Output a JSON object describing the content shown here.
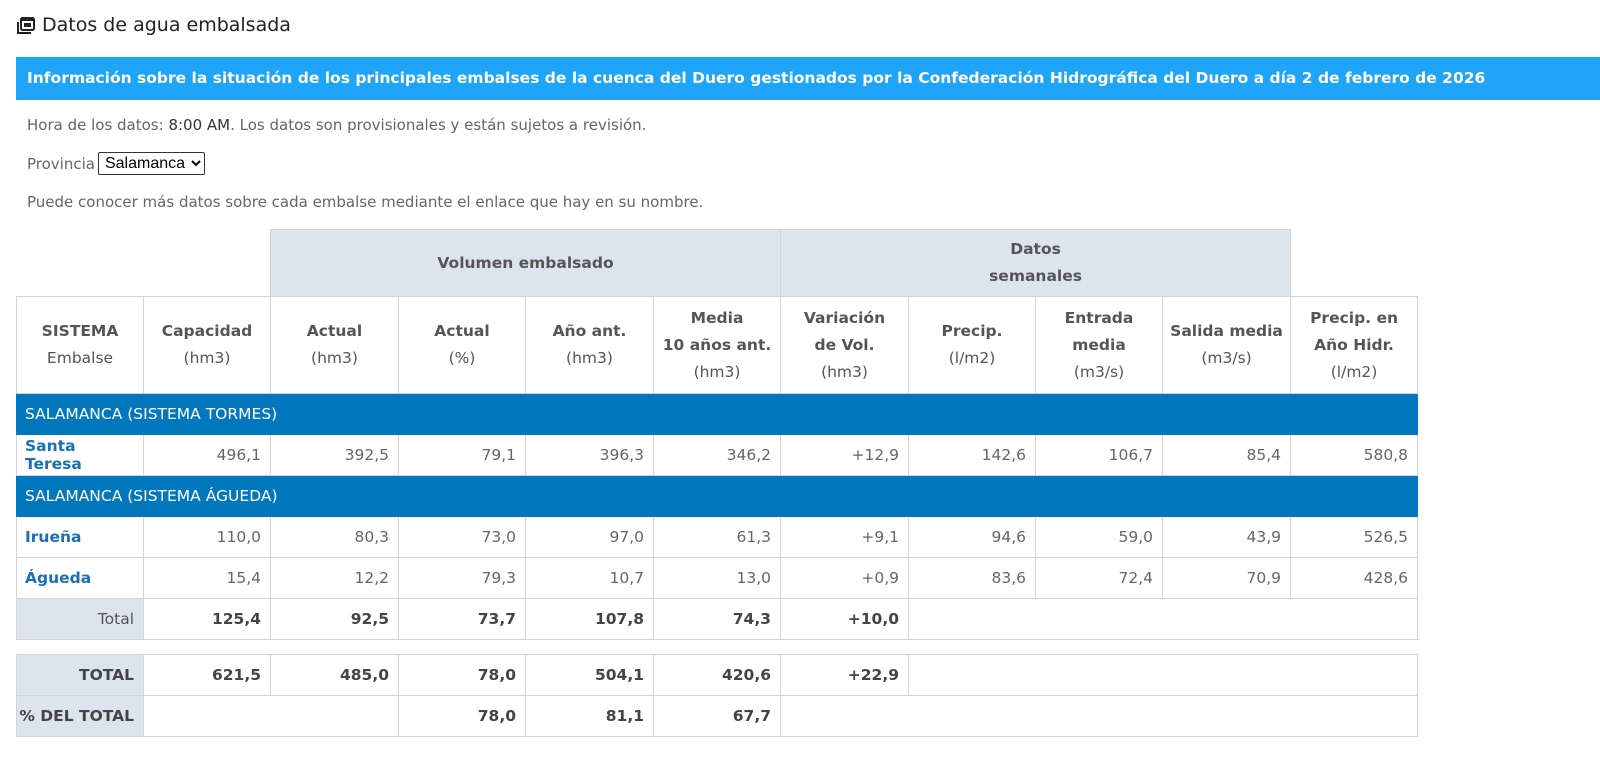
{
  "header": {
    "title": "Datos de agua embalsada",
    "icon": "calendar-icon"
  },
  "banner": "Información sobre la situación de los principales embalses de la cuenca del Duero gestionados por la Confederación Hidrográfica del Duero a día 2 de febrero de 2026",
  "info": {
    "prefix": "Hora de los datos: ",
    "time": "8:00 AM",
    "suffix": ". Los datos son provisionales y están sujetos a revisión."
  },
  "province": {
    "label": "Provincia",
    "selected": "Salamanca"
  },
  "hint": "Puede conocer más datos sobre cada embalse mediante el enlace que hay en su nombre.",
  "colors": {
    "banner": "#1ea5f7",
    "section": "#0277bd",
    "link": "#1a6fb5",
    "label_bg": "#dce4ee"
  },
  "table": {
    "groups": [
      "Volumen embalsado",
      "Datos\nsemanales"
    ],
    "columns": [
      [
        "SISTEMA",
        "Embalse"
      ],
      [
        "Capacidad",
        "(hm3)"
      ],
      [
        "Actual",
        "(hm3)"
      ],
      [
        "Actual",
        "(%)"
      ],
      [
        "Año ant.",
        "(hm3)"
      ],
      [
        "Media",
        "10 años ant.",
        "(hm3)"
      ],
      [
        "Variación",
        "de Vol.",
        "(hm3)"
      ],
      [
        "Precip.",
        "(l/m2)"
      ],
      [
        "Entrada",
        "media",
        "(m3/s)"
      ],
      [
        "Salida media",
        "(m3/s)"
      ],
      [
        "Precip. en",
        "Año Hidr.",
        "(l/m2)"
      ]
    ],
    "sections": [
      {
        "name": "SALAMANCA (SISTEMA TORMES)",
        "rows": [
          {
            "name": "Santa Teresa",
            "values": [
              "496,1",
              "392,5",
              "79,1",
              "396,3",
              "346,2",
              "+12,9",
              "142,6",
              "106,7",
              "85,4",
              "580,8"
            ]
          }
        ]
      },
      {
        "name": "SALAMANCA (SISTEMA ÁGUEDA)",
        "rows": [
          {
            "name": "Irueña",
            "values": [
              "110,0",
              "80,3",
              "73,0",
              "97,0",
              "61,3",
              "+9,1",
              "94,6",
              "59,0",
              "43,9",
              "526,5"
            ]
          },
          {
            "name": "Águeda",
            "values": [
              "15,4",
              "12,2",
              "79,3",
              "10,7",
              "13,0",
              "+0,9",
              "83,6",
              "72,4",
              "70,9",
              "428,6"
            ]
          }
        ],
        "total": {
          "label": "Total",
          "values": [
            "125,4",
            "92,5",
            "73,7",
            "107,8",
            "74,3",
            "+10,0"
          ]
        }
      }
    ]
  },
  "totals": {
    "total": {
      "label": "TOTAL",
      "values": [
        "621,5",
        "485,0",
        "78,0",
        "504,1",
        "420,6",
        "+22,9"
      ]
    },
    "percent": {
      "label": "% DEL TOTAL",
      "values": [
        "78,0",
        "81,1",
        "67,7"
      ]
    }
  }
}
